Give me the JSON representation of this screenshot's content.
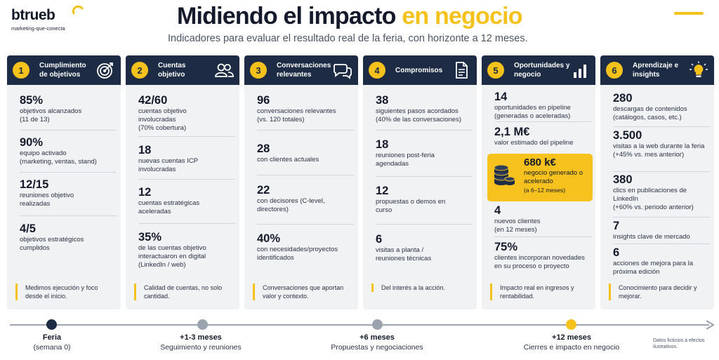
{
  "header": {
    "logo_text": "btrueb",
    "logo_tagline": "marketing-que-conecta",
    "title_main": "Midiendo el impacto ",
    "title_accent": "en negocio",
    "subtitle": "Indicadores para evaluar el resultado real de la feria, con horizonte a 12 meses."
  },
  "colors": {
    "accent": "#f5c21b",
    "navy": "#1d2b45",
    "panel": "#f1f2f4"
  },
  "columns": [
    {
      "number": "1",
      "title": "Cumplimiento de objetivos",
      "icon": "target-icon",
      "metrics": [
        {
          "value": "85%",
          "label": "objetivos alcanzados",
          "note": "(11 de 13)"
        },
        {
          "value": "90%",
          "label": "equipo activado",
          "note": "(marketing, ventas, stand)"
        },
        {
          "value": "12/15",
          "label": "reuniones objetivo realizadas",
          "note": ""
        },
        {
          "value": "4/5",
          "label": "objetivos estratégicos cumplidos",
          "note": ""
        }
      ],
      "footer": "Medimos ejecución y foco desde el inicio."
    },
    {
      "number": "2",
      "title": "Cuentas objetivo",
      "icon": "users-icon",
      "metrics": [
        {
          "value": "42/60",
          "label": "cuentas objetivo involucradas",
          "note": "(70% cobertura)"
        },
        {
          "value": "18",
          "label": "nuevas cuentas ICP involucradas",
          "note": ""
        },
        {
          "value": "12",
          "label": "cuentas estratégicas aceleradas",
          "note": ""
        },
        {
          "value": "35%",
          "label": "de las cuentas objetivo interactuaron en digital",
          "note": "(LinkedIn / web)"
        }
      ],
      "footer": "Calidad de cuentas, no solo cantidad."
    },
    {
      "number": "3",
      "title": "Conversaciones relevantes",
      "icon": "chat-icon",
      "metrics": [
        {
          "value": "96",
          "label": "conversaciones relevantes",
          "note": "(vs. 120 totales)"
        },
        {
          "value": "28",
          "label": "con clientes actuales",
          "note": ""
        },
        {
          "value": "22",
          "label": "con decisores (C-level, directores)",
          "note": ""
        },
        {
          "value": "40%",
          "label": "con necesidades/proyectos identificados",
          "note": ""
        }
      ],
      "footer": "Conversaciones que aportan valor y contexto."
    },
    {
      "number": "4",
      "title": "Compromisos",
      "icon": "document-icon",
      "metrics": [
        {
          "value": "38",
          "label": "siguientes pasos acordados",
          "note": "(40% de las conversaciones)"
        },
        {
          "value": "18",
          "label": "reuniones post-feria agendadas",
          "note": ""
        },
        {
          "value": "12",
          "label": "propuestas o demos en curso",
          "note": ""
        },
        {
          "value": "6",
          "label": "visitas a planta / reuniones técnicas",
          "note": ""
        }
      ],
      "footer": "Del interés a la acción."
    },
    {
      "number": "5",
      "title": "Oportunidades y negocio",
      "icon": "bar-chart-icon",
      "metrics": [
        {
          "value": "14",
          "label": "oportunidades en pipeline",
          "note": "(generadas o aceleradas)"
        },
        {
          "value": "2,1 M€",
          "label": "valor estimado del pipeline",
          "note": ""
        },
        {
          "value": "4",
          "label": "nuevos clientes",
          "note": "(en 12 meses)"
        },
        {
          "value": "75%",
          "label": "clientes incorporan novedades en su proceso o proyecto",
          "note": ""
        }
      ],
      "highlight": {
        "value": "680 k€",
        "label": "negocio generado o acelerado",
        "note": "(a 6–12 meses)",
        "icon": "coins-icon"
      },
      "footer": "Impacto real en ingresos y rentabilidad."
    },
    {
      "number": "6",
      "title": "Aprendizaje e insights",
      "icon": "lightbulb-icon",
      "metrics": [
        {
          "value": "280",
          "label": "descargas de contenidos",
          "note": "(catálogos, casos, etc.)"
        },
        {
          "value": "3.500",
          "label": "visitas a la web durante la feria (+45% vs. mes anterior)",
          "note": ""
        },
        {
          "value": "380",
          "label": "clics en publicaciones de LinkedIn",
          "note": "(+60% vs. periodo anterior)"
        },
        {
          "value": "7",
          "label": "insights clave de mercado",
          "note": ""
        },
        {
          "value": "6",
          "label": "acciones de mejora para la próxima edición",
          "note": ""
        }
      ],
      "footer": "Conocimiento para decidir y mejorar."
    }
  ],
  "timeline": {
    "points": [
      {
        "title": "Feria",
        "subtitle": "(semana 0)",
        "color": "#1d2b45"
      },
      {
        "title": "+1-3 meses",
        "subtitle": "Seguimiento y reuniones",
        "color": "#9ba3af"
      },
      {
        "title": "+6 meses",
        "subtitle": "Propuestas y negociaciones",
        "color": "#9ba3af"
      },
      {
        "title": "+12 meses",
        "subtitle": "Cierres e impacto en negocio",
        "color": "#f5c21b"
      }
    ],
    "disclaimer": "Datos ficticios a efectos ilustrativos."
  }
}
